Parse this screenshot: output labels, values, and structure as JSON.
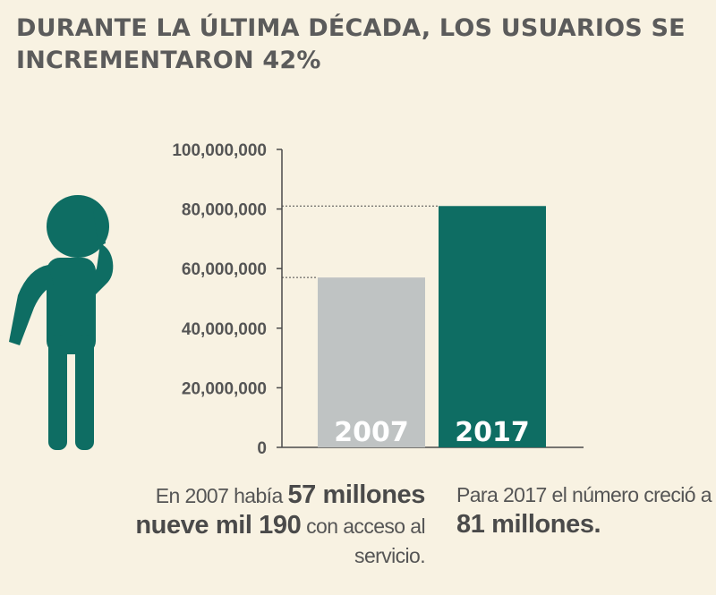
{
  "title": "DURANTE LA ÚLTIMA DÉCADA, LOS USUARIOS SE INCREMENTARON 42%",
  "colors": {
    "background": "#f8f2e2",
    "bar_2007": "#bfc3c3",
    "bar_2017": "#0e6d63",
    "icon": "#0e6d63"
  },
  "icon": "person-on-phone-icon",
  "chart_data": {
    "type": "bar",
    "categories": [
      "2007",
      "2017"
    ],
    "values": [
      57009190,
      81000000
    ],
    "ylim": [
      0,
      100000000
    ],
    "yticks": [
      "0",
      "20,000,000",
      "40,000,000",
      "60,000,000",
      "80,000,000",
      "100,000,000"
    ],
    "grid": false,
    "reference_lines": "dotted lines at the top of each bar"
  },
  "captions": {
    "left": {
      "prefix": "En 2007 había ",
      "bold": "57 millones nueve mil 190",
      "suffix": " con acceso al servicio."
    },
    "right": {
      "prefix": "Para 2017 el número creció a ",
      "bold": "81 millones."
    }
  }
}
